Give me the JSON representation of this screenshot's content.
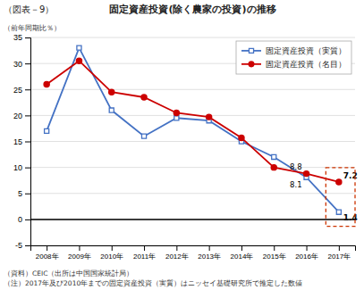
{
  "chart_data": {
    "type": "line",
    "title": "固定資産投資(除く農家の投資)の推移",
    "header": "（図表－9）",
    "ylabel": "（前年同期比％）",
    "footnotes": [
      "（資料）CEIC（出所は中国国家統計局）",
      "（注）2017年及び2010年までの固定資産投資（実質）はニッセイ基礎研究所で推定した数値"
    ],
    "categories": [
      "2008年",
      "2009年",
      "2010年",
      "2011年",
      "2012年",
      "2013年",
      "2014年",
      "2015年",
      "2016年",
      "2017年"
    ],
    "series": [
      {
        "name": "固定資産投資（実質）",
        "color": "#4472c4",
        "marker": "square",
        "values": [
          17.0,
          33.0,
          21.0,
          16.0,
          19.5,
          19.0,
          15.0,
          12.0,
          8.1,
          1.4
        ]
      },
      {
        "name": "固定資産投資（名目）",
        "color": "#cc0000",
        "marker": "circle",
        "values": [
          26.0,
          30.5,
          24.5,
          23.5,
          20.5,
          19.7,
          15.7,
          10.0,
          8.8,
          7.2
        ]
      }
    ],
    "ylim": [
      -5,
      35
    ],
    "yticks": [
      -5,
      0,
      5,
      10,
      15,
      20,
      25,
      30,
      35
    ],
    "grid": true,
    "legend": "upper right",
    "annotations": [
      "8.8",
      "8.1",
      "7.2",
      "1.4"
    ]
  }
}
